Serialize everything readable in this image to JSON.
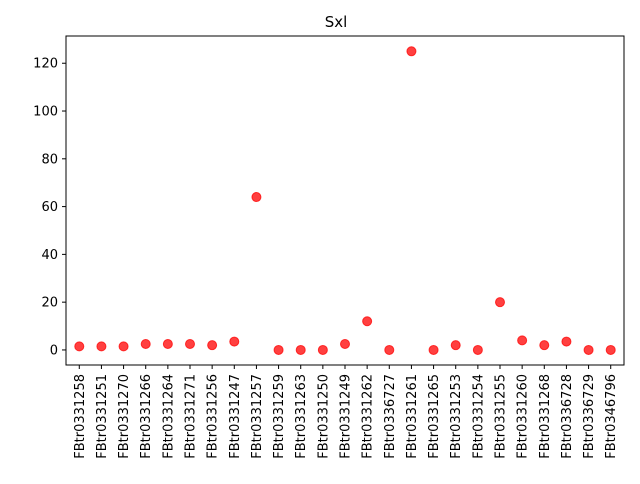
{
  "chart_data": {
    "type": "scatter",
    "title": "Sxl",
    "xlabel": "",
    "ylabel": "",
    "categories": [
      "FBtr0331258",
      "FBtr0331251",
      "FBtr0331270",
      "FBtr0331266",
      "FBtr0331264",
      "FBtr0331271",
      "FBtr0331256",
      "FBtr0331247",
      "FBtr0331257",
      "FBtr0331259",
      "FBtr0331263",
      "FBtr0331250",
      "FBtr0331249",
      "FBtr0331262",
      "FBtr0336727",
      "FBtr0331261",
      "FBtr0331265",
      "FBtr0331253",
      "FBtr0331254",
      "FBtr0331255",
      "FBtr0331260",
      "FBtr0331268",
      "FBtr0336728",
      "FBtr0336729",
      "FBtr0346796"
    ],
    "values": [
      1.5,
      1.5,
      1.5,
      2.5,
      2.5,
      2.5,
      2,
      3.5,
      64,
      0,
      0,
      0,
      2.5,
      12,
      0,
      125,
      0,
      2,
      0,
      20,
      4,
      2,
      3.5,
      0,
      0
    ],
    "ylim": [
      -6.3,
      131.4
    ],
    "yticks": [
      0,
      20,
      40,
      60,
      80,
      100,
      120
    ],
    "marker_color": "#ff0000",
    "marker_alpha": 0.75,
    "grid": false,
    "legend": "none"
  }
}
